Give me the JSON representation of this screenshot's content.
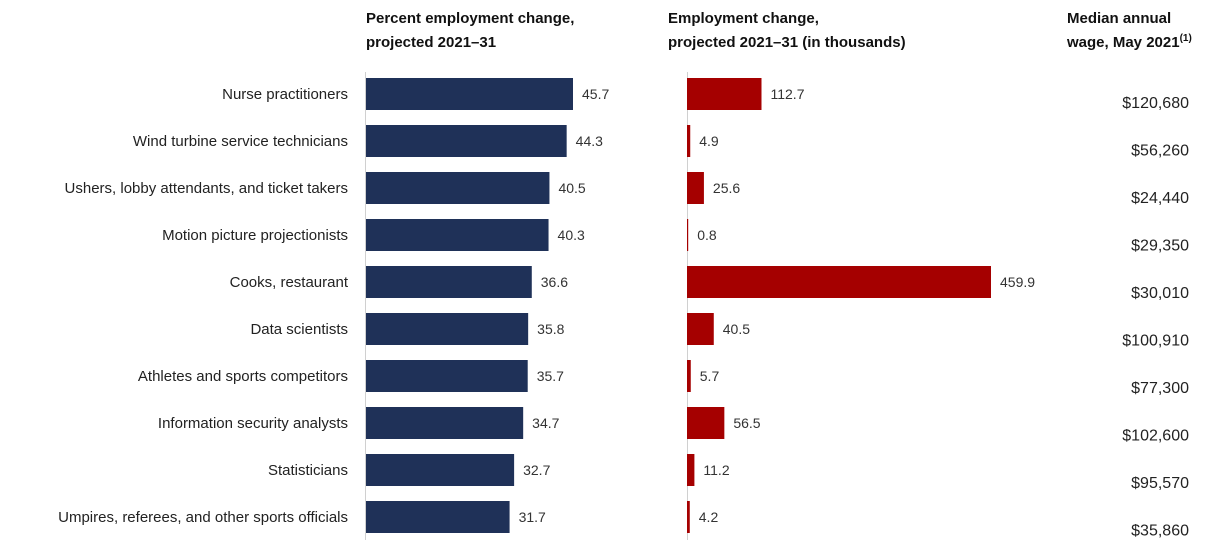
{
  "chart_data": [
    {
      "type": "bar",
      "orientation": "horizontal",
      "title": "Percent employment change, projected 2021–31",
      "title_lines": [
        "Percent employment change,",
        "projected 2021–31"
      ],
      "categories": [
        "Nurse practitioners",
        "Wind turbine service technicians",
        "Ushers, lobby attendants, and ticket takers",
        "Motion picture projectionists",
        "Cooks, restaurant",
        "Data scientists",
        "Athletes and sports competitors",
        "Information security analysts",
        "Statisticians",
        "Umpires, referees, and other sports officials"
      ],
      "values": [
        45.7,
        44.3,
        40.5,
        40.3,
        36.6,
        35.8,
        35.7,
        34.7,
        32.7,
        31.7
      ],
      "value_labels": [
        "45.7",
        "44.3",
        "40.5",
        "40.3",
        "36.6",
        "35.8",
        "35.7",
        "34.7",
        "32.7",
        "31.7"
      ],
      "color": "#1f3158",
      "xlim": [
        0,
        60
      ],
      "grid": false,
      "legend": "none"
    },
    {
      "type": "bar",
      "orientation": "horizontal",
      "title": "Employment change, projected 2021–31 (in thousands)",
      "title_lines": [
        "Employment change,",
        "projected 2021–31 (in thousands)"
      ],
      "values": [
        112.7,
        4.9,
        25.6,
        0.8,
        459.9,
        40.5,
        5.7,
        56.5,
        11.2,
        4.2
      ],
      "value_labels": [
        "112.7",
        "4.9",
        "25.6",
        "0.8",
        "459.9",
        "40.5",
        "5.7",
        "56.5",
        "11.2",
        "4.2"
      ],
      "color": "#a50000",
      "xlim": [
        0,
        500
      ],
      "grid": false,
      "legend": "none"
    },
    {
      "type": "table",
      "title_lines": [
        "Median annual",
        "wage, May 2021"
      ],
      "title_superscript": "(1)",
      "values": [
        "$120,680",
        "$56,260",
        "$24,440",
        "$29,350",
        "$30,010",
        "$100,910",
        "$77,300",
        "$102,600",
        "$95,570",
        "$35,860"
      ]
    }
  ],
  "colors": {
    "percent_bar": "#1f3158",
    "count_bar": "#a50000",
    "axis_line": "#d0d0d0"
  }
}
